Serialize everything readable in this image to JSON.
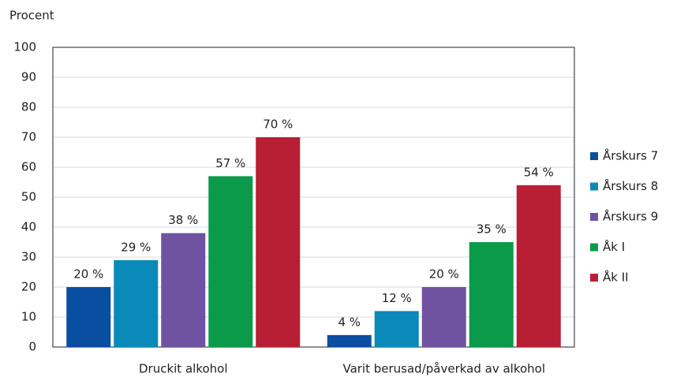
{
  "chart_data": {
    "type": "bar",
    "y_label": "Procent",
    "categories": [
      "Druckit alkohol",
      "Varit berusad/påverkad av alkohol"
    ],
    "series": [
      {
        "name": "Årskurs 7",
        "color": "#0a4ea2",
        "values": [
          20,
          4
        ],
        "value_labels": [
          "20 %",
          "4 %"
        ]
      },
      {
        "name": "Årskurs 8",
        "color": "#0a8ab8",
        "values": [
          29,
          12
        ],
        "value_labels": [
          "29 %",
          "12 %"
        ]
      },
      {
        "name": "Årskurs 9",
        "color": "#6f52a0",
        "values": [
          38,
          20
        ],
        "value_labels": [
          "38 %",
          "20 %"
        ]
      },
      {
        "name": "Åk I",
        "color": "#0a9a4a",
        "values": [
          57,
          35
        ],
        "value_labels": [
          "57 %",
          "35 %"
        ]
      },
      {
        "name": "Åk II",
        "color": "#b81f35",
        "values": [
          70,
          54
        ],
        "value_labels": [
          "70 %",
          "54 %"
        ]
      }
    ],
    "ylim": [
      0,
      100
    ],
    "yticks": [
      0,
      10,
      20,
      30,
      40,
      50,
      60,
      70,
      80,
      90,
      100
    ],
    "grid": true,
    "legend": "right"
  }
}
